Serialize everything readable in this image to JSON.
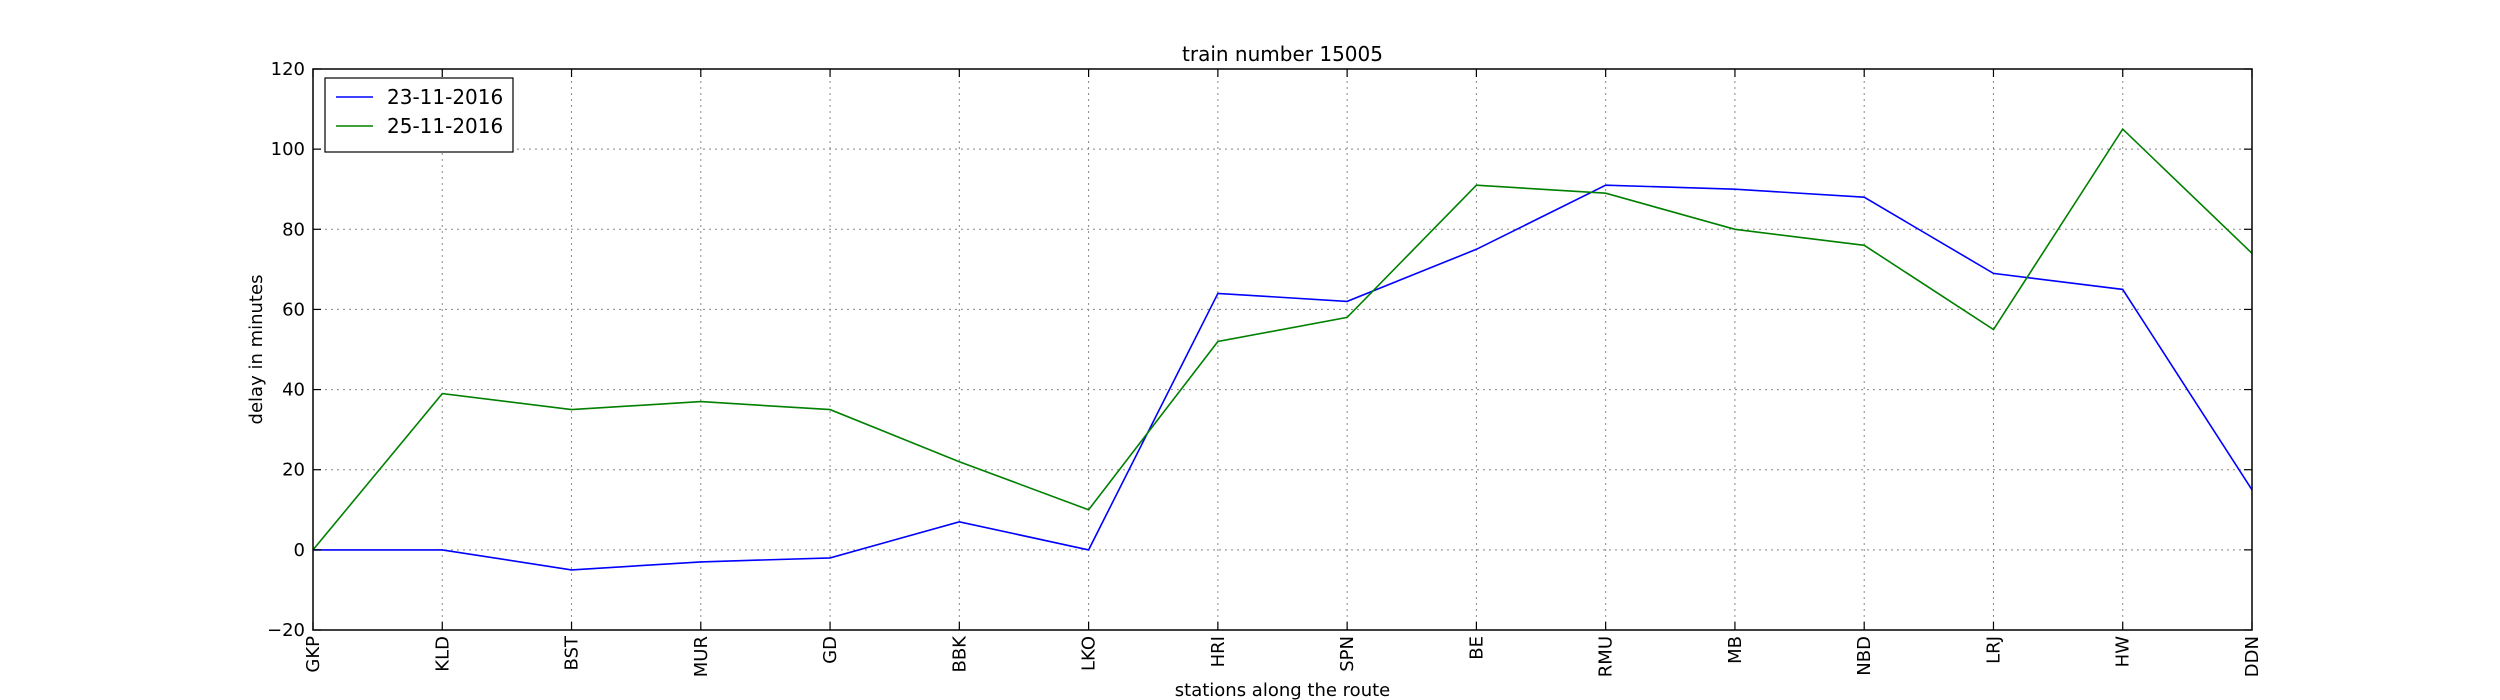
{
  "chart_data": {
    "type": "line",
    "title": "train number 15005",
    "xlabel": "stations along the route",
    "ylabel": "delay in minutes",
    "categories": [
      "GKP",
      "KLD",
      "BST",
      "MUR",
      "GD",
      "BBK",
      "LKO",
      "HRI",
      "SPN",
      "BE",
      "RMU",
      "MB",
      "NBD",
      "LRJ",
      "HW",
      "DDN"
    ],
    "ylim": [
      -20,
      120
    ],
    "yticks": [
      -20,
      0,
      20,
      40,
      60,
      80,
      100,
      120
    ],
    "grid": true,
    "legend_position": "top-left",
    "series": [
      {
        "name": "23-11-2016",
        "color": "#0000ff",
        "values": [
          0,
          0,
          -5,
          -3,
          -2,
          7,
          0,
          64,
          62,
          75,
          91,
          90,
          88,
          69,
          65,
          15
        ]
      },
      {
        "name": "25-11-2016",
        "color": "#008000",
        "values": [
          0,
          39,
          35,
          37,
          35,
          22,
          10,
          52,
          58,
          91,
          89,
          80,
          76,
          55,
          105,
          74
        ]
      }
    ]
  }
}
